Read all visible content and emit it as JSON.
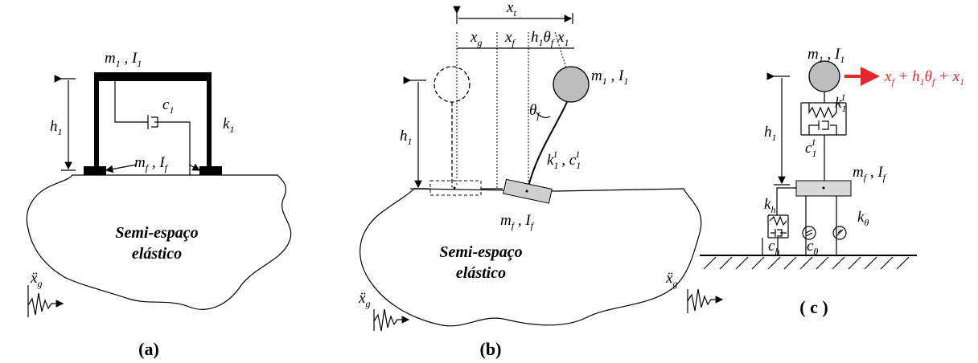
{
  "panel_a": {
    "mass": [
      "m",
      {
        "sub": "1"
      },
      " , I",
      {
        "sub": "1"
      }
    ],
    "damper": [
      "c",
      {
        "sub": "1"
      }
    ],
    "stiffness": [
      "k",
      {
        "sub": "1"
      }
    ],
    "height": [
      "h",
      {
        "sub": "1"
      }
    ],
    "foundation": [
      "m",
      {
        "sub": "f"
      },
      " , I",
      {
        "sub": "f"
      }
    ],
    "soil_line1": "Semi-espaço",
    "soil_line2": "elástico",
    "excitation": [
      "ẍ",
      {
        "sub": "g"
      }
    ],
    "caption": "(a)"
  },
  "panel_b": {
    "total_displacement": [
      "x",
      {
        "sub": "t"
      }
    ],
    "ground_displacement": [
      "x",
      {
        "sub": "g"
      }
    ],
    "foundation_displacement": [
      "x",
      {
        "sub": "f"
      }
    ],
    "rocking_displacement": [
      "h",
      {
        "sub": "1"
      },
      "θ",
      {
        "sub": "f"
      }
    ],
    "relative_displacement": [
      "x",
      {
        "sub": "1"
      }
    ],
    "mass": [
      "m",
      {
        "sub": "1"
      },
      " , I",
      {
        "sub": "1"
      }
    ],
    "rotation": [
      "θ",
      {
        "sub": "f"
      }
    ],
    "spring_damper": [
      "k",
      {
        "sub": "1"
      },
      {
        "sup": "1"
      },
      " , c",
      {
        "sub": "1"
      },
      {
        "sup": "1"
      }
    ],
    "height": [
      "h",
      {
        "sub": "1"
      }
    ],
    "foundation": [
      "m",
      {
        "sub": "f"
      },
      " , I",
      {
        "sub": "f"
      }
    ],
    "soil_line1": "Semi-espaço",
    "soil_line2": "elástico",
    "excitation": [
      "ẍ",
      {
        "sub": "g"
      }
    ],
    "caption": "(b)"
  },
  "panel_c": {
    "mass": [
      "m",
      {
        "sub": "1"
      },
      " , I",
      {
        "sub": "1"
      }
    ],
    "response": [
      "x",
      {
        "sub": "f"
      },
      " + h",
      {
        "sub": "1"
      },
      "θ",
      {
        "sub": "f"
      },
      " + x",
      {
        "sub": "1"
      }
    ],
    "spring": [
      "k",
      {
        "sub": "1"
      },
      {
        "sup": "1"
      }
    ],
    "damper": [
      "c",
      {
        "sub": "1"
      },
      {
        "sup": "1"
      }
    ],
    "height": [
      "h",
      {
        "sub": "1"
      }
    ],
    "foundation": [
      "m",
      {
        "sub": "f"
      },
      " , I",
      {
        "sub": "f"
      }
    ],
    "horizontal_spring": [
      "k",
      {
        "sub": "h"
      }
    ],
    "horizontal_damper": [
      "c",
      {
        "sub": "h"
      }
    ],
    "rotational_spring": [
      "k",
      {
        "sub": "θ"
      }
    ],
    "rotational_damper": [
      "c",
      {
        "sub": "θ"
      }
    ],
    "excitation": [
      "ẍ",
      {
        "sub": "g"
      }
    ],
    "caption": "( c )"
  }
}
